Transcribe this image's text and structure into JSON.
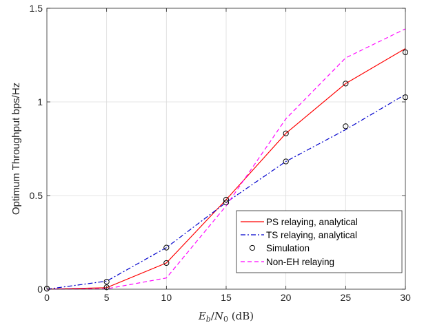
{
  "chart_data": {
    "type": "line",
    "xlabel_parts": {
      "e": "E",
      "b": "b",
      "slash": "/",
      "n": "N",
      "zero": "0",
      "unit": " (dB)"
    },
    "ylabel": "Optimum Throughput bps/Hz",
    "xlim": [
      0,
      30
    ],
    "ylim": [
      0,
      1.5
    ],
    "xticks": [
      0,
      5,
      10,
      15,
      20,
      25,
      30
    ],
    "yticks": [
      0,
      0.5,
      1,
      1.5
    ],
    "xtick_labels": [
      "0",
      "5",
      "10",
      "15",
      "20",
      "25",
      "30"
    ],
    "ytick_labels": [
      "0",
      "0.5",
      "1",
      "1.5"
    ],
    "grid": true,
    "legend_position": "bottom-right",
    "x": [
      0,
      5,
      10,
      15,
      20,
      25,
      30
    ],
    "series": [
      {
        "name": "PS relaying, analytical",
        "color": "#ff0000",
        "dash": "solid",
        "values": [
          0.0,
          0.008,
          0.14,
          0.478,
          0.832,
          1.098,
          1.285
        ]
      },
      {
        "name": "TS relaying, analytical",
        "color": "#0000cc",
        "dash": "dashdot",
        "values": [
          0.0,
          0.043,
          0.222,
          0.463,
          0.682,
          0.852,
          1.04
        ]
      },
      {
        "name": "Simulation",
        "color": "#000000",
        "dash": "none",
        "marker": "circle",
        "values_ps": [
          0.003,
          0.01,
          0.14,
          0.478,
          0.832,
          1.098,
          1.265
        ],
        "values_ts": [
          0.003,
          0.04,
          0.222,
          0.463,
          0.682,
          0.87,
          1.025
        ]
      },
      {
        "name": "Non-EH relaying",
        "color": "#ff00ff",
        "dash": "dashed",
        "values": [
          0.0,
          0.002,
          0.06,
          0.445,
          0.91,
          1.235,
          1.39
        ]
      }
    ]
  }
}
